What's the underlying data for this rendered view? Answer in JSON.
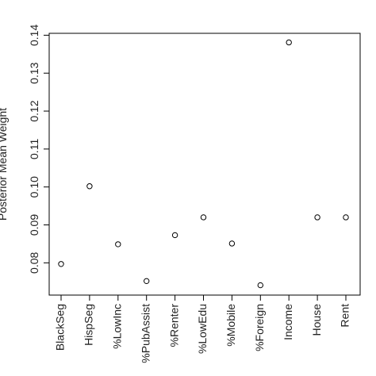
{
  "chart_data": {
    "type": "scatter",
    "categories": [
      "BlackSeg",
      "HispSeg",
      "%LowInc",
      "%PubAssist",
      "%Renter",
      "%LowEdu",
      "%Mobile",
      "%Foreign",
      "Income",
      "House",
      "Rent"
    ],
    "values": [
      0.0797,
      0.1002,
      0.0849,
      0.0752,
      0.0873,
      0.092,
      0.0851,
      0.0741,
      0.1381,
      0.092,
      0.092
    ],
    "ylabel": "Posterior Mean Weight",
    "xlabel": "",
    "ylim": [
      0.0715,
      0.1405
    ],
    "yticks": [
      0.08,
      0.09,
      0.1,
      0.11,
      0.12,
      0.13,
      0.14
    ],
    "ytick_labels": [
      "0.08",
      "0.09",
      "0.10",
      "0.11",
      "0.12",
      "0.13",
      "0.14"
    ],
    "grid": false,
    "legend": "none",
    "marker": "open-circle",
    "colors": {
      "point": "#000000",
      "axis": "#000000",
      "text": "#222222"
    }
  }
}
